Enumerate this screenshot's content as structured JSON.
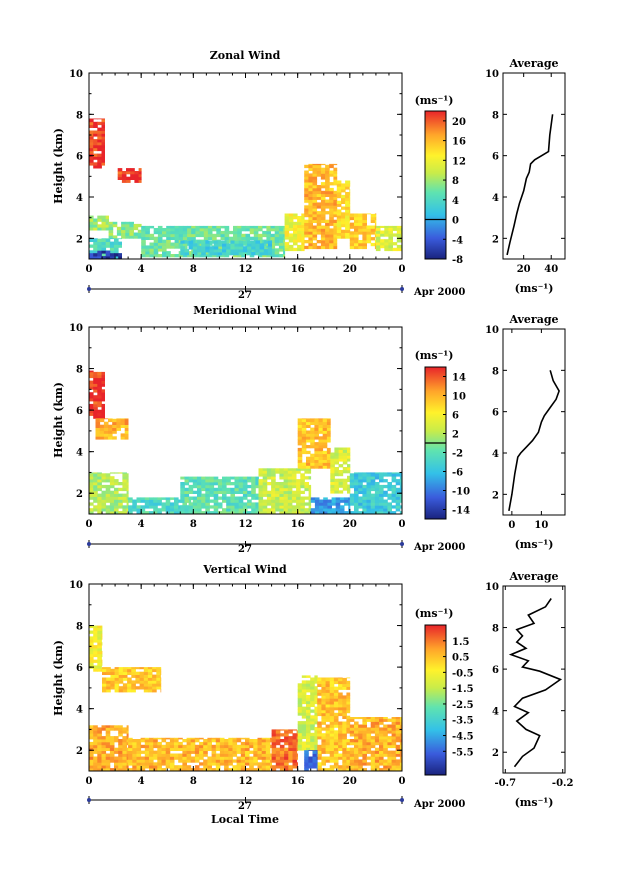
{
  "chart_data": [
    {
      "type": "heatmap",
      "title": "Zonal Wind",
      "ylabel": "Height (km)",
      "xlim": [
        0,
        24
      ],
      "ylim": [
        1,
        10
      ],
      "x_ticks": [
        "0",
        "4",
        "8",
        "12",
        "16",
        "20",
        "0"
      ],
      "y_ticks": [
        "2",
        "4",
        "6",
        "8",
        "10"
      ],
      "day_label": "27",
      "date_label": "Apr 2000",
      "colorbar": {
        "unit": "(ms⁻¹)",
        "range": [
          -8,
          22
        ],
        "ticks": [
          "20",
          "16",
          "12",
          "8",
          "4",
          "0",
          "-4",
          "-8"
        ],
        "tick_values": [
          20,
          16,
          12,
          8,
          4,
          0,
          -4,
          -8
        ],
        "contour": 0
      },
      "regions": [
        {
          "t": [
            0,
            1.2
          ],
          "z": [
            5.4,
            7.8
          ],
          "v": 21
        },
        {
          "t": [
            2.2,
            4
          ],
          "z": [
            4.7,
            5.4
          ],
          "v": 21
        },
        {
          "t": [
            0,
            1.5
          ],
          "z": [
            2.4,
            3.1
          ],
          "v": 8
        },
        {
          "t": [
            1.5,
            4
          ],
          "z": [
            2.0,
            2.8
          ],
          "v": 7
        },
        {
          "t": [
            0,
            2.5
          ],
          "z": [
            1.0,
            2.0
          ],
          "v": 4
        },
        {
          "t": [
            0,
            2.5
          ],
          "z": [
            1.0,
            1.4
          ],
          "v": -6
        },
        {
          "t": [
            4,
            15
          ],
          "z": [
            1.1,
            2.6
          ],
          "v": 6
        },
        {
          "t": [
            7,
            14
          ],
          "z": [
            1.2,
            1.9
          ],
          "v": 3
        },
        {
          "t": [
            15,
            16.5
          ],
          "z": [
            1.4,
            3.2
          ],
          "v": 12
        },
        {
          "t": [
            16.5,
            19
          ],
          "z": [
            1.5,
            5.6
          ],
          "v": 16
        },
        {
          "t": [
            19,
            20
          ],
          "z": [
            2.0,
            4.8
          ],
          "v": 14
        },
        {
          "t": [
            20,
            22
          ],
          "z": [
            1.5,
            3.2
          ],
          "v": 15
        },
        {
          "t": [
            22,
            24
          ],
          "z": [
            1.4,
            2.6
          ],
          "v": 11
        }
      ],
      "profile": {
        "title": "Average",
        "xlim": [
          5,
          50
        ],
        "x_ticks": [
          "20",
          "40"
        ],
        "x_tick_values": [
          20,
          40
        ],
        "xlabel": "(ms⁻¹)",
        "ylim": [
          1,
          10
        ],
        "y_ticks": [
          "2",
          "4",
          "6",
          "8",
          "10"
        ],
        "x": [
          8,
          10,
          13,
          15,
          17,
          20,
          22,
          24,
          25,
          28,
          33,
          38,
          39,
          40,
          41
        ],
        "z": [
          1.2,
          1.8,
          2.6,
          3.2,
          3.7,
          4.3,
          4.9,
          5.2,
          5.6,
          5.8,
          6.0,
          6.2,
          7.0,
          7.5,
          8.0
        ]
      }
    },
    {
      "type": "heatmap",
      "title": "Meridional Wind",
      "ylabel": "Height (km)",
      "xlim": [
        0,
        24
      ],
      "ylim": [
        1,
        10
      ],
      "x_ticks": [
        "0",
        "4",
        "8",
        "12",
        "16",
        "20",
        "0"
      ],
      "y_ticks": [
        "2",
        "4",
        "6",
        "8",
        "10"
      ],
      "day_label": "27",
      "date_label": "Apr 2000",
      "colorbar": {
        "unit": "(ms⁻¹)",
        "range": [
          -16,
          16
        ],
        "ticks": [
          "14",
          "10",
          "6",
          "2",
          "-2",
          "-6",
          "-10",
          "-14"
        ],
        "tick_values": [
          14,
          10,
          6,
          2,
          -2,
          -6,
          -10,
          -14
        ],
        "contour": 0
      },
      "regions": [
        {
          "t": [
            0,
            1.2
          ],
          "z": [
            5.6,
            7.9
          ],
          "v": 15
        },
        {
          "t": [
            0.5,
            3
          ],
          "z": [
            4.6,
            5.6
          ],
          "v": 10
        },
        {
          "t": [
            0,
            3
          ],
          "z": [
            1.0,
            3.0
          ],
          "v": 2
        },
        {
          "t": [
            3,
            8
          ],
          "z": [
            1.0,
            1.8
          ],
          "v": -3
        },
        {
          "t": [
            7,
            13
          ],
          "z": [
            1.0,
            2.8
          ],
          "v": -2
        },
        {
          "t": [
            13,
            17
          ],
          "z": [
            1.0,
            3.2
          ],
          "v": 3
        },
        {
          "t": [
            16,
            18.5
          ],
          "z": [
            3.2,
            5.6
          ],
          "v": 9
        },
        {
          "t": [
            18.5,
            20
          ],
          "z": [
            2.0,
            4.2
          ],
          "v": 4
        },
        {
          "t": [
            17,
            20
          ],
          "z": [
            1.0,
            1.8
          ],
          "v": -8
        },
        {
          "t": [
            20,
            24
          ],
          "z": [
            1.0,
            3.0
          ],
          "v": -5
        }
      ],
      "profile": {
        "title": "Average",
        "xlim": [
          -3,
          18
        ],
        "x_ticks": [
          "0",
          "10"
        ],
        "x_tick_values": [
          0,
          10
        ],
        "xlabel": "(ms⁻¹)",
        "ylim": [
          1,
          10
        ],
        "y_ticks": [
          "2",
          "4",
          "6",
          "8",
          "10"
        ],
        "x": [
          -1,
          0,
          1,
          2,
          3,
          5,
          7,
          9,
          10,
          11,
          13,
          15,
          16,
          14,
          13
        ],
        "z": [
          1.2,
          2.0,
          3.0,
          3.8,
          4.0,
          4.3,
          4.6,
          5.0,
          5.5,
          5.8,
          6.2,
          6.6,
          7.0,
          7.5,
          8.0
        ]
      }
    },
    {
      "type": "heatmap",
      "title": "Vertical Wind",
      "ylabel": "Height (km)",
      "xlabel": "Local Time",
      "xlim": [
        0,
        24
      ],
      "ylim": [
        1,
        10
      ],
      "x_ticks": [
        "0",
        "4",
        "8",
        "12",
        "16",
        "20",
        "0"
      ],
      "y_ticks": [
        "2",
        "4",
        "6",
        "8",
        "10"
      ],
      "day_label": "27",
      "date_label": "Apr 2000",
      "colorbar": {
        "unit": "(ms⁻¹)",
        "range": [
          -7,
          2.5
        ],
        "ticks": [
          "1.5",
          "0.5",
          "-0.5",
          "-1.5",
          "-2.5",
          "-3.5",
          "-4.5",
          "-5.5"
        ],
        "tick_values": [
          1.5,
          0.5,
          -0.5,
          -1.5,
          -2.5,
          -3.5,
          -4.5,
          -5.5
        ]
      },
      "regions": [
        {
          "t": [
            0,
            1
          ],
          "z": [
            5.8,
            8.0
          ],
          "v": -0.6
        },
        {
          "t": [
            1,
            5.5
          ],
          "z": [
            4.8,
            6.0
          ],
          "v": 0.3
        },
        {
          "t": [
            0,
            3
          ],
          "z": [
            1.0,
            3.2
          ],
          "v": 0.8
        },
        {
          "t": [
            3,
            14
          ],
          "z": [
            1.0,
            2.6
          ],
          "v": 0.6
        },
        {
          "t": [
            14,
            16
          ],
          "z": [
            1.0,
            3.0
          ],
          "v": 1.6
        },
        {
          "t": [
            16,
            17.5
          ],
          "z": [
            2.0,
            5.6
          ],
          "v": -1.2
        },
        {
          "t": [
            17.5,
            20
          ],
          "z": [
            1.0,
            5.5
          ],
          "v": 0.4
        },
        {
          "t": [
            16.5,
            17.5
          ],
          "z": [
            1.0,
            2.0
          ],
          "v": -5.5
        },
        {
          "t": [
            20,
            24
          ],
          "z": [
            1.0,
            3.6
          ],
          "v": 0.7
        }
      ],
      "profile": {
        "title": "Average",
        "xlim": [
          -0.72,
          -0.18
        ],
        "x_ticks": [
          "-0.7",
          "-0.2"
        ],
        "x_tick_values": [
          -0.7,
          -0.2
        ],
        "xlabel": "(ms⁻¹)",
        "ylim": [
          1,
          10
        ],
        "y_ticks": [
          "2",
          "4",
          "6",
          "8",
          "10"
        ],
        "x": [
          -0.62,
          -0.55,
          -0.45,
          -0.4,
          -0.52,
          -0.6,
          -0.5,
          -0.62,
          -0.55,
          -0.35,
          -0.22,
          -0.4,
          -0.55,
          -0.5,
          -0.65,
          -0.52,
          -0.6,
          -0.55,
          -0.6,
          -0.45,
          -0.5,
          -0.35,
          -0.3
        ],
        "z": [
          1.3,
          1.8,
          2.2,
          2.8,
          3.1,
          3.5,
          3.9,
          4.2,
          4.6,
          5.0,
          5.5,
          5.9,
          6.1,
          6.4,
          6.7,
          7.0,
          7.3,
          7.6,
          7.9,
          8.2,
          8.6,
          9.0,
          9.4
        ]
      }
    }
  ]
}
